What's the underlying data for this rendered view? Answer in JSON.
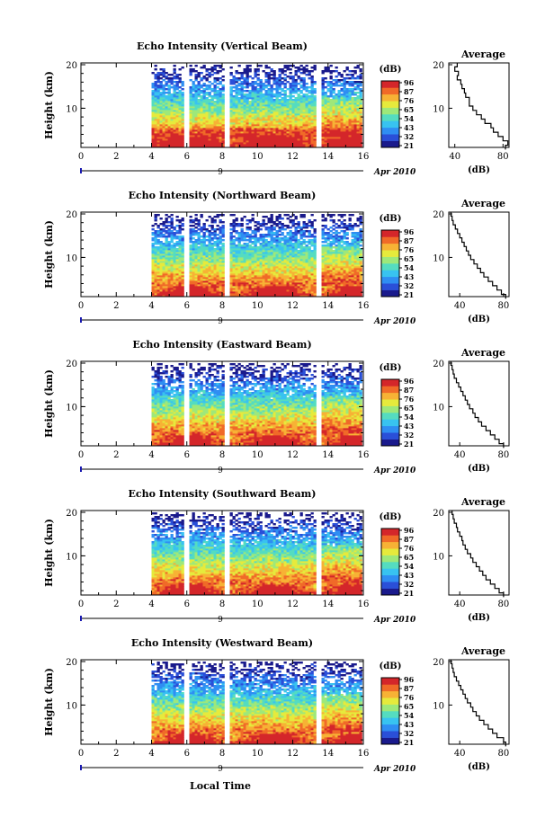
{
  "figure": {
    "x_axis_title": "Local Time",
    "date_label": "Apr 2010",
    "day_marker": "9"
  },
  "colorbar": {
    "unit": "(dB)",
    "ticks": [
      "96",
      "87",
      "76",
      "65",
      "54",
      "43",
      "32",
      "21"
    ],
    "colors": [
      "#1a1a8c",
      "#2a4fd8",
      "#2f8ef2",
      "#38c3f0",
      "#55dcc0",
      "#9ee87a",
      "#e6ea3c",
      "#f7b235",
      "#f06a28",
      "#d4262a"
    ]
  },
  "chart_data": [
    {
      "type": "heatmap",
      "title": "Echo Intensity (Vertical Beam)",
      "ylabel": "Height (km)",
      "xlim": [
        0,
        16
      ],
      "ylim": [
        1,
        20
      ],
      "x_ticks": [
        "0",
        "2",
        "4",
        "6",
        "8",
        "10",
        "12",
        "14",
        "16"
      ],
      "y_ticks": [
        "10",
        "20"
      ],
      "data_gaps_hours": [
        [
          5.7,
          6.0
        ],
        [
          8.0,
          8.3
        ],
        [
          13.3,
          13.6
        ]
      ],
      "data_start_hour": 4,
      "profile": {
        "title": "Average",
        "xlabel": "(dB)",
        "x_ticks": [
          "40",
          "80"
        ],
        "xlim": [
          35,
          85
        ],
        "y": [
          1,
          2,
          3,
          4,
          5,
          6,
          7,
          8,
          9,
          10,
          11,
          12,
          13,
          14,
          15,
          16,
          17,
          18,
          19,
          20
        ],
        "x": [
          82,
          84,
          80,
          76,
          72,
          70,
          65,
          62,
          58,
          55,
          52,
          52,
          49,
          48,
          46,
          45,
          42,
          43,
          40,
          42
        ]
      }
    },
    {
      "type": "heatmap",
      "title": "Echo Intensity (Northward Beam)",
      "ylabel": "Height (km)",
      "xlim": [
        0,
        16
      ],
      "ylim": [
        1,
        20
      ],
      "x_ticks": [
        "0",
        "2",
        "4",
        "6",
        "8",
        "10",
        "12",
        "14",
        "16"
      ],
      "y_ticks": [
        "10",
        "20"
      ],
      "data_gaps_hours": [
        [
          5.7,
          6.0
        ],
        [
          8.0,
          8.3
        ],
        [
          13.3,
          13.6
        ]
      ],
      "data_start_hour": 4,
      "profile": {
        "title": "Average",
        "xlabel": "(dB)",
        "x_ticks": [
          "40",
          "80"
        ],
        "xlim": [
          30,
          85
        ],
        "y": [
          1,
          2,
          3,
          4,
          5,
          6,
          7,
          8,
          9,
          10,
          11,
          12,
          13,
          14,
          15,
          16,
          17,
          18,
          19,
          20
        ],
        "x": [
          82,
          78,
          74,
          70,
          66,
          62,
          59,
          56,
          53,
          50,
          48,
          46,
          44,
          42,
          40,
          38,
          36,
          34,
          33,
          32
        ]
      }
    },
    {
      "type": "heatmap",
      "title": "Echo Intensity (Eastward Beam)",
      "ylabel": "Height (km)",
      "xlim": [
        0,
        16
      ],
      "ylim": [
        1,
        20
      ],
      "x_ticks": [
        "0",
        "2",
        "4",
        "6",
        "8",
        "10",
        "12",
        "14",
        "16"
      ],
      "y_ticks": [
        "10",
        "20"
      ],
      "data_gaps_hours": [
        [
          5.7,
          6.0
        ],
        [
          8.0,
          8.3
        ],
        [
          13.3,
          13.6
        ]
      ],
      "data_start_hour": 4,
      "profile": {
        "title": "Average",
        "xlabel": "(dB)",
        "x_ticks": [
          "40",
          "80"
        ],
        "xlim": [
          30,
          85
        ],
        "y": [
          1,
          2,
          3,
          4,
          5,
          6,
          7,
          8,
          9,
          10,
          11,
          12,
          13,
          14,
          15,
          16,
          17,
          18,
          19,
          20
        ],
        "x": [
          80,
          76,
          72,
          68,
          64,
          60,
          57,
          54,
          52,
          49,
          47,
          45,
          43,
          41,
          39,
          37,
          35,
          34,
          33,
          32
        ]
      }
    },
    {
      "type": "heatmap",
      "title": "Echo Intensity (Southward Beam)",
      "ylabel": "Height (km)",
      "xlim": [
        0,
        16
      ],
      "ylim": [
        1,
        20
      ],
      "x_ticks": [
        "0",
        "2",
        "4",
        "6",
        "8",
        "10",
        "12",
        "14",
        "16"
      ],
      "y_ticks": [
        "10",
        "20"
      ],
      "data_gaps_hours": [
        [
          5.7,
          6.0
        ],
        [
          8.0,
          8.3
        ],
        [
          13.3,
          13.6
        ]
      ],
      "data_start_hour": 4,
      "profile": {
        "title": "Average",
        "xlabel": "(dB)",
        "x_ticks": [
          "40",
          "80"
        ],
        "xlim": [
          30,
          85
        ],
        "y": [
          1,
          2,
          3,
          4,
          5,
          6,
          7,
          8,
          9,
          10,
          11,
          12,
          13,
          14,
          15,
          16,
          17,
          18,
          19,
          20
        ],
        "x": [
          80,
          76,
          72,
          68,
          64,
          61,
          58,
          55,
          52,
          50,
          47,
          45,
          43,
          42,
          40,
          38,
          37,
          35,
          34,
          33
        ]
      }
    },
    {
      "type": "heatmap",
      "title": "Echo Intensity (Westward Beam)",
      "ylabel": "Height (km)",
      "xlim": [
        0,
        16
      ],
      "ylim": [
        1,
        20
      ],
      "x_ticks": [
        "0",
        "2",
        "4",
        "6",
        "8",
        "10",
        "12",
        "14",
        "16"
      ],
      "y_ticks": [
        "10",
        "20"
      ],
      "data_gaps_hours": [
        [
          5.7,
          6.0
        ],
        [
          8.0,
          8.3
        ],
        [
          13.3,
          13.6
        ]
      ],
      "data_start_hour": 4,
      "profile": {
        "title": "Average",
        "xlabel": "(dB)",
        "x_ticks": [
          "40",
          "80"
        ],
        "xlim": [
          30,
          85
        ],
        "y": [
          1,
          2,
          3,
          4,
          5,
          6,
          7,
          8,
          9,
          10,
          11,
          12,
          13,
          14,
          15,
          16,
          17,
          18,
          19,
          20
        ],
        "x": [
          82,
          80,
          74,
          70,
          66,
          62,
          58,
          55,
          52,
          50,
          47,
          45,
          43,
          41,
          39,
          37,
          35,
          34,
          33,
          32
        ]
      }
    }
  ]
}
